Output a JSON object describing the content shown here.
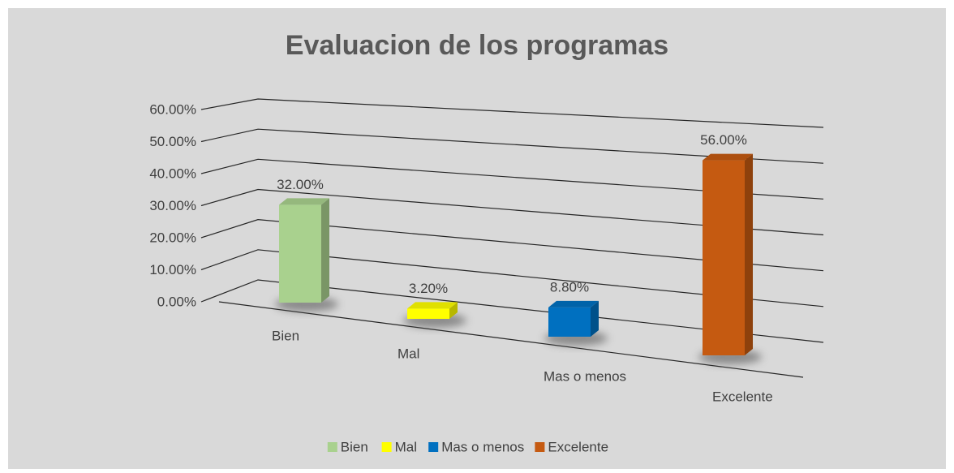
{
  "chart_data": {
    "type": "bar3d",
    "title": "Evaluacion de los programas",
    "categories": [
      "Bien",
      "Mal",
      "Mas o menos",
      "Excelente"
    ],
    "values": [
      32,
      3.2,
      8.8,
      56
    ],
    "value_labels": [
      "32.00%",
      "3.20%",
      "8.80%",
      "56.00%"
    ],
    "colors": [
      "#a9d18e",
      "#ffff00",
      "#0070c0",
      "#c55a11"
    ],
    "ylim": [
      0,
      60
    ],
    "yticks": [
      {
        "value": 0,
        "label": "0.00%"
      },
      {
        "value": 10,
        "label": "10.00%"
      },
      {
        "value": 20,
        "label": "20.00%"
      },
      {
        "value": 30,
        "label": "30.00%"
      },
      {
        "value": 40,
        "label": "40.00%"
      },
      {
        "value": 50,
        "label": "50.00%"
      },
      {
        "value": 60,
        "label": "60.00%"
      }
    ],
    "grid": true,
    "legend": "bottom"
  }
}
